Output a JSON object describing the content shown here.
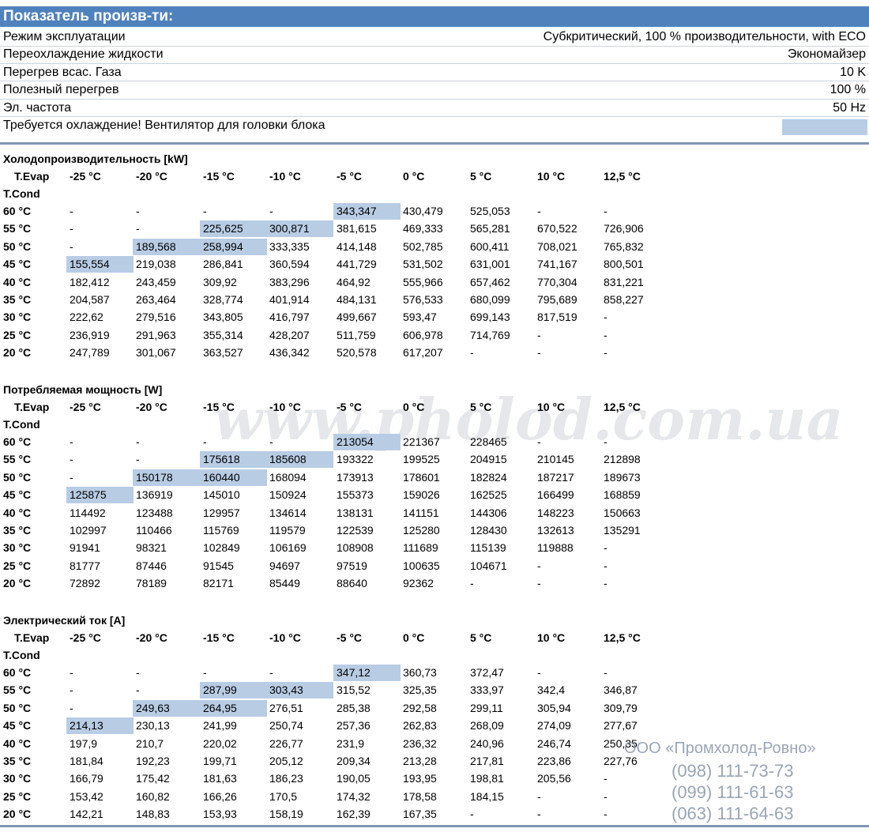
{
  "header": {
    "title": "Показатель произв-ти:"
  },
  "info": [
    [
      "Режим эксплуатации",
      "Субкритический, 100 % производительности, with ECO"
    ],
    [
      "Переохлаждение жидкости",
      "Экономайзер"
    ],
    [
      "Перегрев всас. Газа",
      "10 K"
    ],
    [
      "Полезный перегрев",
      "100 %"
    ],
    [
      "Эл. частота",
      "50 Hz"
    ],
    [
      "Требуется охлаждение! Вентилятор для головки блока"
    ]
  ],
  "tables": [
    {
      "title": "Холодопроизводительность [kW]",
      "evap_label": "T.Evap",
      "cond_label": "T.Cond",
      "columns": [
        "-25 °C",
        "-20 °C",
        "-15 °C",
        "-10 °C",
        "-5 °C",
        "0 °C",
        "5 °C",
        "10 °C",
        "12,5 °C"
      ],
      "highlighted": [
        [
          0,
          4
        ],
        [
          1,
          2
        ],
        [
          1,
          3
        ],
        [
          2,
          1
        ],
        [
          2,
          2
        ],
        [
          3,
          0
        ]
      ],
      "rows": [
        {
          "label": "60 °C",
          "cells": [
            "-",
            "-",
            "-",
            "-",
            "343,347",
            "430,479",
            "525,053",
            "-",
            "-"
          ]
        },
        {
          "label": "55 °C",
          "cells": [
            "-",
            "-",
            "225,625",
            "300,871",
            "381,615",
            "469,333",
            "565,281",
            "670,522",
            "726,906"
          ]
        },
        {
          "label": "50 °C",
          "cells": [
            "-",
            "189,568",
            "258,994",
            "333,335",
            "414,148",
            "502,785",
            "600,411",
            "708,021",
            "765,832"
          ]
        },
        {
          "label": "45 °C",
          "cells": [
            "155,554",
            "219,038",
            "286,841",
            "360,594",
            "441,729",
            "531,502",
            "631,001",
            "741,167",
            "800,501"
          ]
        },
        {
          "label": "40 °C",
          "cells": [
            "182,412",
            "243,459",
            "309,92",
            "383,296",
            "464,92",
            "555,966",
            "657,462",
            "770,304",
            "831,221"
          ]
        },
        {
          "label": "35 °C",
          "cells": [
            "204,587",
            "263,464",
            "328,774",
            "401,914",
            "484,131",
            "576,533",
            "680,099",
            "795,689",
            "858,227"
          ]
        },
        {
          "label": "30 °C",
          "cells": [
            "222,62",
            "279,516",
            "343,805",
            "416,797",
            "499,667",
            "593,47",
            "699,143",
            "817,519",
            "-"
          ]
        },
        {
          "label": "25 °C",
          "cells": [
            "236,919",
            "291,963",
            "355,314",
            "428,207",
            "511,759",
            "606,978",
            "714,769",
            "-",
            "-"
          ]
        },
        {
          "label": "20 °C",
          "cells": [
            "247,789",
            "301,067",
            "363,527",
            "436,342",
            "520,578",
            "617,207",
            "-",
            "-",
            "-"
          ]
        }
      ]
    },
    {
      "title": "Потребляемая мощность [W]",
      "evap_label": "T.Evap",
      "cond_label": "T.Cond",
      "columns": [
        "-25 °C",
        "-20 °C",
        "-15 °C",
        "-10 °C",
        "-5 °C",
        "0 °C",
        "5 °C",
        "10 °C",
        "12,5 °C"
      ],
      "highlighted": [
        [
          0,
          4
        ],
        [
          1,
          2
        ],
        [
          1,
          3
        ],
        [
          2,
          1
        ],
        [
          2,
          2
        ],
        [
          3,
          0
        ]
      ],
      "rows": [
        {
          "label": "60 °C",
          "cells": [
            "-",
            "-",
            "-",
            "-",
            "213054",
            "221367",
            "228465",
            "-",
            "-"
          ]
        },
        {
          "label": "55 °C",
          "cells": [
            "-",
            "-",
            "175618",
            "185608",
            "193322",
            "199525",
            "204915",
            "210145",
            "212898"
          ]
        },
        {
          "label": "50 °C",
          "cells": [
            "-",
            "150178",
            "160440",
            "168094",
            "173913",
            "178601",
            "182824",
            "187217",
            "189673"
          ]
        },
        {
          "label": "45 °C",
          "cells": [
            "125875",
            "136919",
            "145010",
            "150924",
            "155373",
            "159026",
            "162525",
            "166499",
            "168859"
          ]
        },
        {
          "label": "40 °C",
          "cells": [
            "114492",
            "123488",
            "129957",
            "134614",
            "138131",
            "141151",
            "144306",
            "148223",
            "150663"
          ]
        },
        {
          "label": "35 °C",
          "cells": [
            "102997",
            "110466",
            "115769",
            "119579",
            "122539",
            "125280",
            "128430",
            "132613",
            "135291"
          ]
        },
        {
          "label": "30 °C",
          "cells": [
            "91941",
            "98321",
            "102849",
            "106169",
            "108908",
            "111689",
            "115139",
            "119888",
            "-"
          ]
        },
        {
          "label": "25 °C",
          "cells": [
            "81777",
            "87446",
            "91545",
            "94697",
            "97519",
            "100635",
            "104671",
            "-",
            "-"
          ]
        },
        {
          "label": "20 °C",
          "cells": [
            "72892",
            "78189",
            "82171",
            "85449",
            "88640",
            "92362",
            "-",
            "-",
            "-"
          ]
        }
      ]
    },
    {
      "title": "Электрический ток [A]",
      "evap_label": "T.Evap",
      "cond_label": "T.Cond",
      "columns": [
        "-25 °C",
        "-20 °C",
        "-15 °C",
        "-10 °C",
        "-5 °C",
        "0 °C",
        "5 °C",
        "10 °C",
        "12,5 °C"
      ],
      "highlighted": [
        [
          0,
          4
        ],
        [
          1,
          2
        ],
        [
          1,
          3
        ],
        [
          2,
          1
        ],
        [
          2,
          2
        ],
        [
          3,
          0
        ]
      ],
      "rows": [
        {
          "label": "60 °C",
          "cells": [
            "-",
            "-",
            "-",
            "-",
            "347,12",
            "360,73",
            "372,47",
            "-",
            "-"
          ]
        },
        {
          "label": "55 °C",
          "cells": [
            "-",
            "-",
            "287,99",
            "303,43",
            "315,52",
            "325,35",
            "333,97",
            "342,4",
            "346,87"
          ]
        },
        {
          "label": "50 °C",
          "cells": [
            "-",
            "249,63",
            "264,95",
            "276,51",
            "285,38",
            "292,58",
            "299,11",
            "305,94",
            "309,79"
          ]
        },
        {
          "label": "45 °C",
          "cells": [
            "214,13",
            "230,13",
            "241,99",
            "250,74",
            "257,36",
            "262,83",
            "268,09",
            "274,09",
            "277,67"
          ]
        },
        {
          "label": "40 °C",
          "cells": [
            "197,9",
            "210,7",
            "220,02",
            "226,77",
            "231,9",
            "236,32",
            "240,96",
            "246,74",
            "250,35"
          ]
        },
        {
          "label": "35 °C",
          "cells": [
            "181,84",
            "192,23",
            "199,71",
            "205,12",
            "209,34",
            "213,28",
            "217,81",
            "223,86",
            "227,76"
          ]
        },
        {
          "label": "30 °C",
          "cells": [
            "166,79",
            "175,42",
            "181,63",
            "186,23",
            "190,05",
            "193,95",
            "198,81",
            "205,56",
            "-"
          ]
        },
        {
          "label": "25 °C",
          "cells": [
            "153,42",
            "160,82",
            "166,26",
            "170,5",
            "174,32",
            "178,58",
            "184,15",
            "-",
            "-"
          ]
        },
        {
          "label": "20 °C",
          "cells": [
            "142,21",
            "148,83",
            "153,93",
            "158,19",
            "162,39",
            "167,35",
            "-",
            "-",
            "-"
          ]
        }
      ]
    }
  ],
  "watermark": {
    "site": "www.pholod.com.ua",
    "company": "ООО «Промхолод-Ровно»",
    "phones": [
      "(098) 111-73-73",
      "(099) 111-61-63",
      "(063) 111-64-63"
    ]
  }
}
